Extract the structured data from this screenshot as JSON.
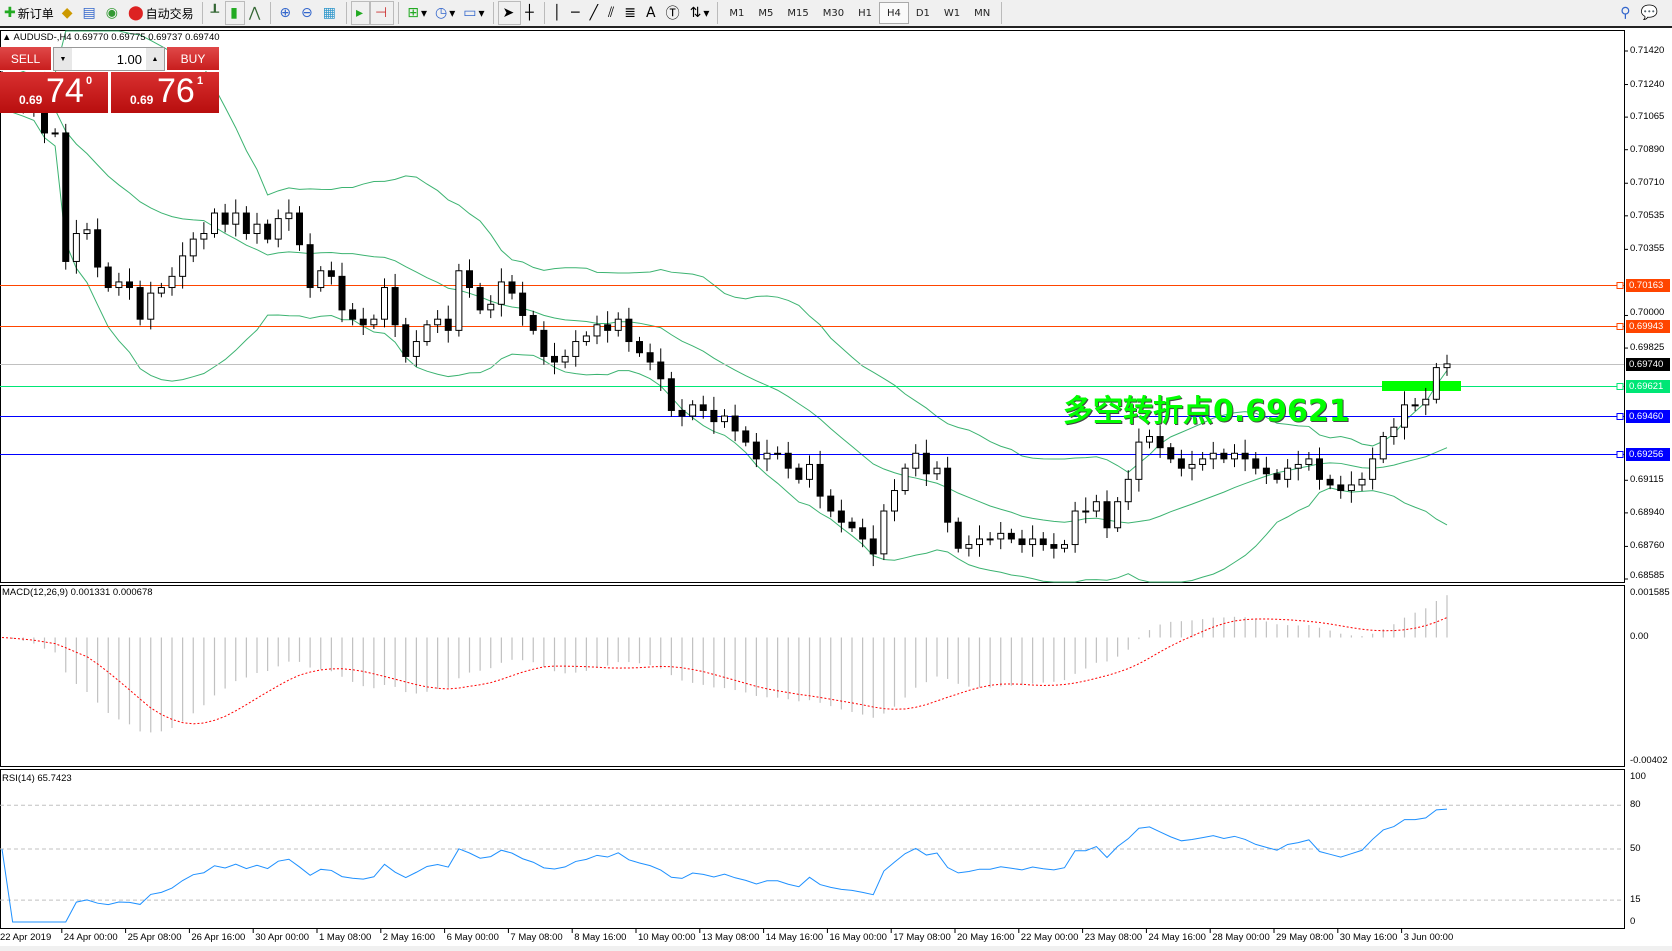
{
  "toolbar": {
    "new_order": "新订单",
    "auto_trading": "自动交易",
    "timeframes": [
      "M1",
      "M5",
      "M15",
      "M30",
      "H1",
      "H4",
      "D1",
      "W1",
      "MN"
    ],
    "active_timeframe": "H4",
    "icons": [
      "new-order-icon",
      "market-watch-icon",
      "data-window-icon",
      "navigator-icon",
      "auto-trading-icon",
      "bar-chart-icon",
      "candlestick-icon",
      "line-chart-icon",
      "zoom-in-icon",
      "zoom-out-icon",
      "tile-windows-icon",
      "auto-scroll-icon",
      "chart-shift-icon",
      "indicators-icon",
      "periods-icon",
      "templates-icon",
      "cursor-icon",
      "crosshair-icon",
      "vertical-line-icon",
      "horizontal-line-icon",
      "trendline-icon",
      "fibonacci-fan-icon",
      "fibonacci-retracement-icon",
      "text-icon",
      "text-label-icon",
      "arrows-icon",
      "search-icon",
      "chat-icon"
    ]
  },
  "symbol_line": "AUDUSD-,H4  0.69770 0.69775 0.69737 0.69740",
  "one_click": {
    "sell": "SELL",
    "buy": "BUY",
    "lots": "1.00",
    "sell_price": {
      "prefix": "0.69",
      "big": "74",
      "sup": "0"
    },
    "buy_price": {
      "prefix": "0.69",
      "big": "76",
      "sup": "1"
    }
  },
  "annotation": "多空转折点0.69621",
  "colors": {
    "bull": "#ffffff",
    "bear": "#000000",
    "bands": "#3cb371",
    "macd_hist": "#c0c0c0",
    "macd_signal": "#ff0000",
    "rsi": "#1e90ff",
    "highlight": "#00ff00"
  },
  "chart_data": {
    "type": "candlestick",
    "price_axis": {
      "ylim": [
        0.68585,
        0.7142
      ],
      "ticks": [
        "0.71420",
        "0.71240",
        "0.71065",
        "0.70890",
        "0.70710",
        "0.70535",
        "0.70355",
        "0.70000",
        "0.69825",
        "0.69115",
        "0.68940",
        "0.68760",
        "0.68585"
      ]
    },
    "time_labels": [
      "22 Apr 2019",
      "24 Apr 00:00",
      "25 Apr 08:00",
      "26 Apr 16:00",
      "30 Apr 00:00",
      "1 May 08:00",
      "2 May 16:00",
      "6 May 00:00",
      "7 May 08:00",
      "8 May 16:00",
      "10 May 00:00",
      "13 May 08:00",
      "14 May 16:00",
      "16 May 00:00",
      "17 May 08:00",
      "20 May 16:00",
      "22 May 00:00",
      "23 May 08:00",
      "24 May 16:00",
      "28 May 00:00",
      "29 May 08:00",
      "30 May 16:00",
      "3 Jun 00:00"
    ],
    "closes": [
      0.7124,
      0.7118,
      0.7115,
      0.711,
      0.7098,
      0.7098,
      0.7029,
      0.7044,
      0.7046,
      0.7026,
      0.7015,
      0.7018,
      0.7015,
      0.6998,
      0.7012,
      0.7015,
      0.7021,
      0.7032,
      0.7041,
      0.7044,
      0.7055,
      0.7049,
      0.7055,
      0.7044,
      0.7049,
      0.7041,
      0.7052,
      0.7055,
      0.7038,
      0.7015,
      0.7024,
      0.7021,
      0.7003,
      0.6998,
      0.6995,
      0.6998,
      0.7015,
      0.6995,
      0.6978,
      0.6986,
      0.6995,
      0.6998,
      0.6992,
      0.7024,
      0.7015,
      0.7003,
      0.7006,
      0.7018,
      0.7012,
      0.7,
      0.6992,
      0.6978,
      0.6975,
      0.6978,
      0.6986,
      0.6989,
      0.6995,
      0.6992,
      0.6998,
      0.6986,
      0.698,
      0.6975,
      0.6966,
      0.6949,
      0.6946,
      0.6952,
      0.6949,
      0.6943,
      0.6946,
      0.6938,
      0.6932,
      0.6923,
      0.6926,
      0.6926,
      0.6918,
      0.6912,
      0.692,
      0.6903,
      0.6895,
      0.6889,
      0.6886,
      0.688,
      0.6872,
      0.6895,
      0.6906,
      0.6918,
      0.6926,
      0.6915,
      0.6918,
      0.6889,
      0.6875,
      0.6877,
      0.688,
      0.688,
      0.6883,
      0.688,
      0.6877,
      0.688,
      0.6877,
      0.6875,
      0.6877,
      0.6895,
      0.6895,
      0.69,
      0.6886,
      0.69,
      0.6912,
      0.6932,
      0.6935,
      0.6929,
      0.6923,
      0.6918,
      0.692,
      0.6923,
      0.6926,
      0.6923,
      0.6926,
      0.6923,
      0.6918,
      0.6915,
      0.6912,
      0.6918,
      0.692,
      0.6923,
      0.6912,
      0.6909,
      0.6906,
      0.6909,
      0.6912,
      0.6923,
      0.6935,
      0.694,
      0.6952,
      0.6952,
      0.6955,
      0.6972,
      0.6974
    ],
    "horizontal_lines": [
      {
        "price": "0.70163",
        "color": "#ff4500"
      },
      {
        "price": "0.69943",
        "color": "#ff4500"
      },
      {
        "price": "0.69740",
        "color": "#000000",
        "line": "#c0c0c0"
      },
      {
        "price": "0.69621",
        "color": "#00e676"
      },
      {
        "price": "0.69460",
        "color": "#0000ff"
      },
      {
        "price": "0.69256",
        "color": "#0000ff"
      }
    ],
    "macd": {
      "label": "MACD(12,26,9) 0.001331 0.000678",
      "ylim": [
        -0.00402,
        0.001585
      ],
      "ticks": [
        "0.001585",
        "0.00",
        "-0.00402"
      ]
    },
    "rsi": {
      "label": "RSI(14) 65.7423",
      "ylim": [
        0,
        100
      ],
      "levels": [
        80,
        50,
        15
      ],
      "ticks": [
        "100",
        "80",
        "50",
        "15",
        "0"
      ]
    }
  }
}
